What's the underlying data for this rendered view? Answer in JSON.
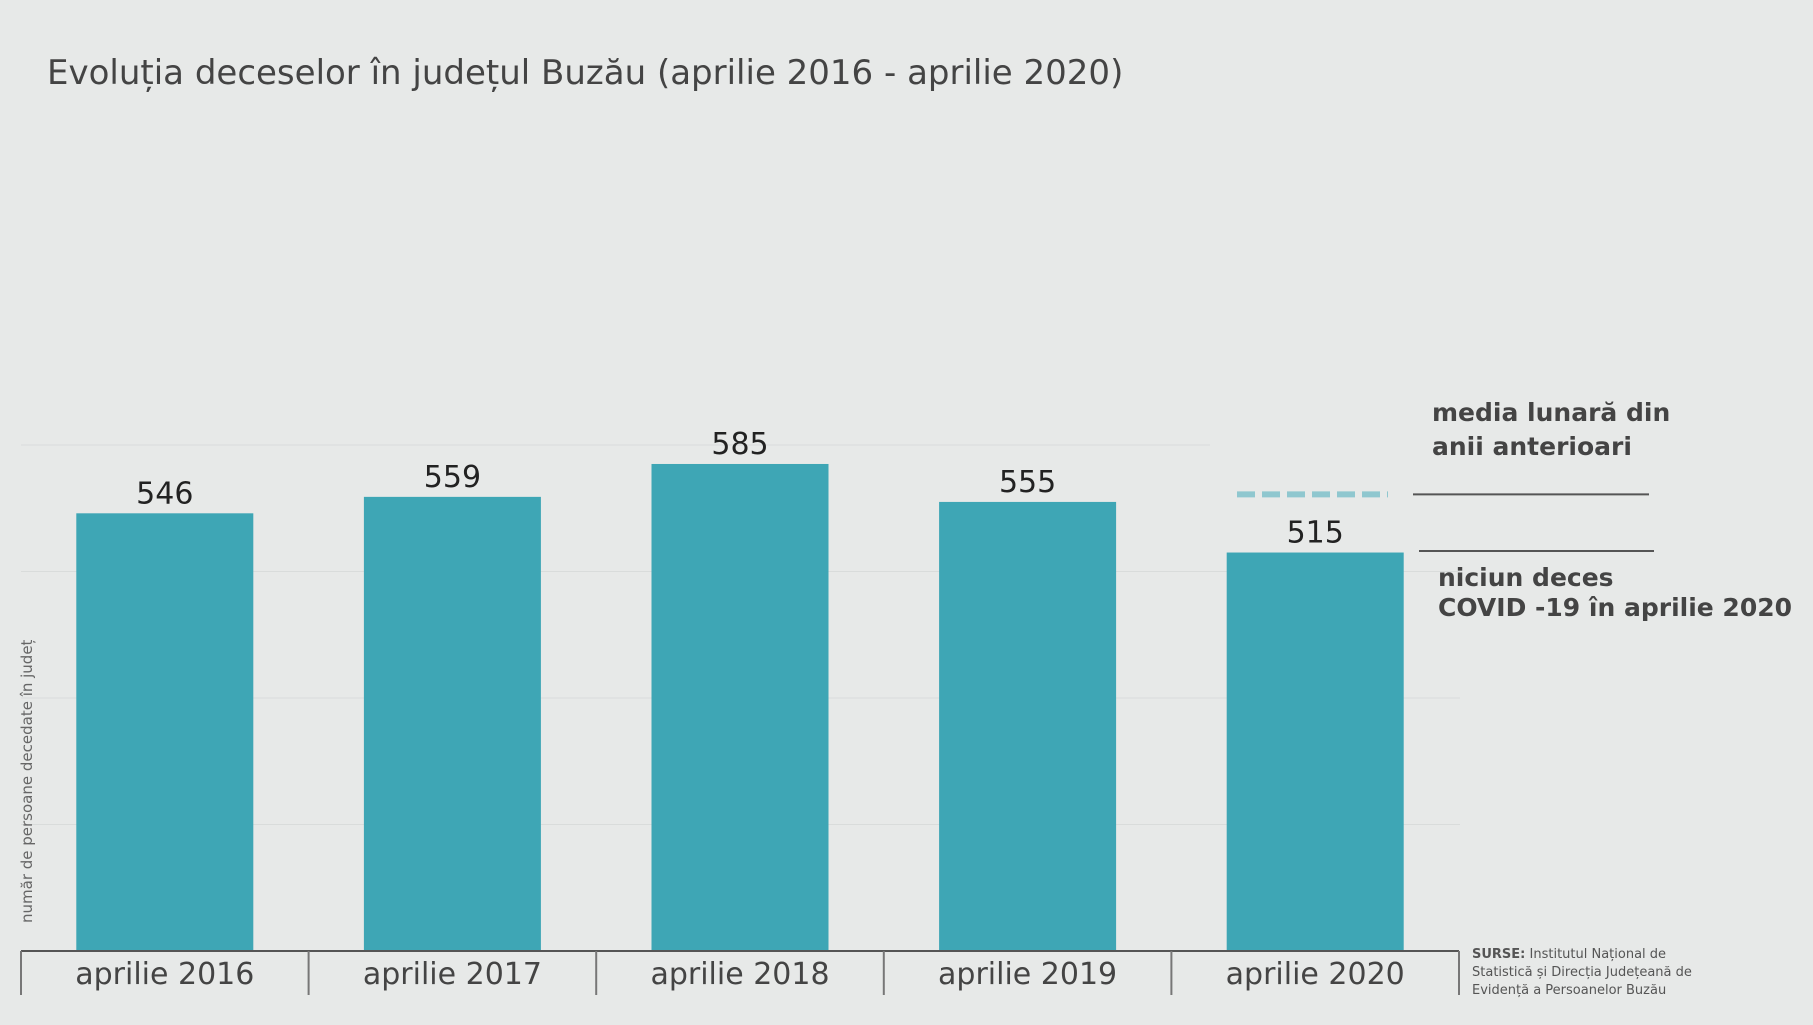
{
  "chart_data": {
    "type": "bar",
    "title": "Evoluția deceselor în județul Buzău (aprilie 2016 - aprilie 2020)",
    "ylabel": "număr de persoane decedate în județ",
    "categories": [
      "aprilie 2016",
      "aprilie 2017",
      "aprilie 2018",
      "aprilie 2019",
      "aprilie 2020"
    ],
    "values": [
      546,
      559,
      585,
      555,
      515
    ],
    "ylim": [
      200,
      600
    ],
    "grid": true,
    "bar_color": "#3ea6b5",
    "reference_line": {
      "value": 561,
      "label_lines": [
        "media lunară din",
        "anii anterioari"
      ],
      "color": "#8fc7cf",
      "style": "dashed"
    },
    "annotation": {
      "label_lines": [
        "niciun deces",
        "COVID -19  în aprilie 2020"
      ]
    },
    "source": {
      "label": "SURSE:",
      "lines": [
        "Institutul Național de",
        "Statistică și Direcția Județeană de",
        "Evidență a Persoanelor Buzău"
      ]
    }
  }
}
